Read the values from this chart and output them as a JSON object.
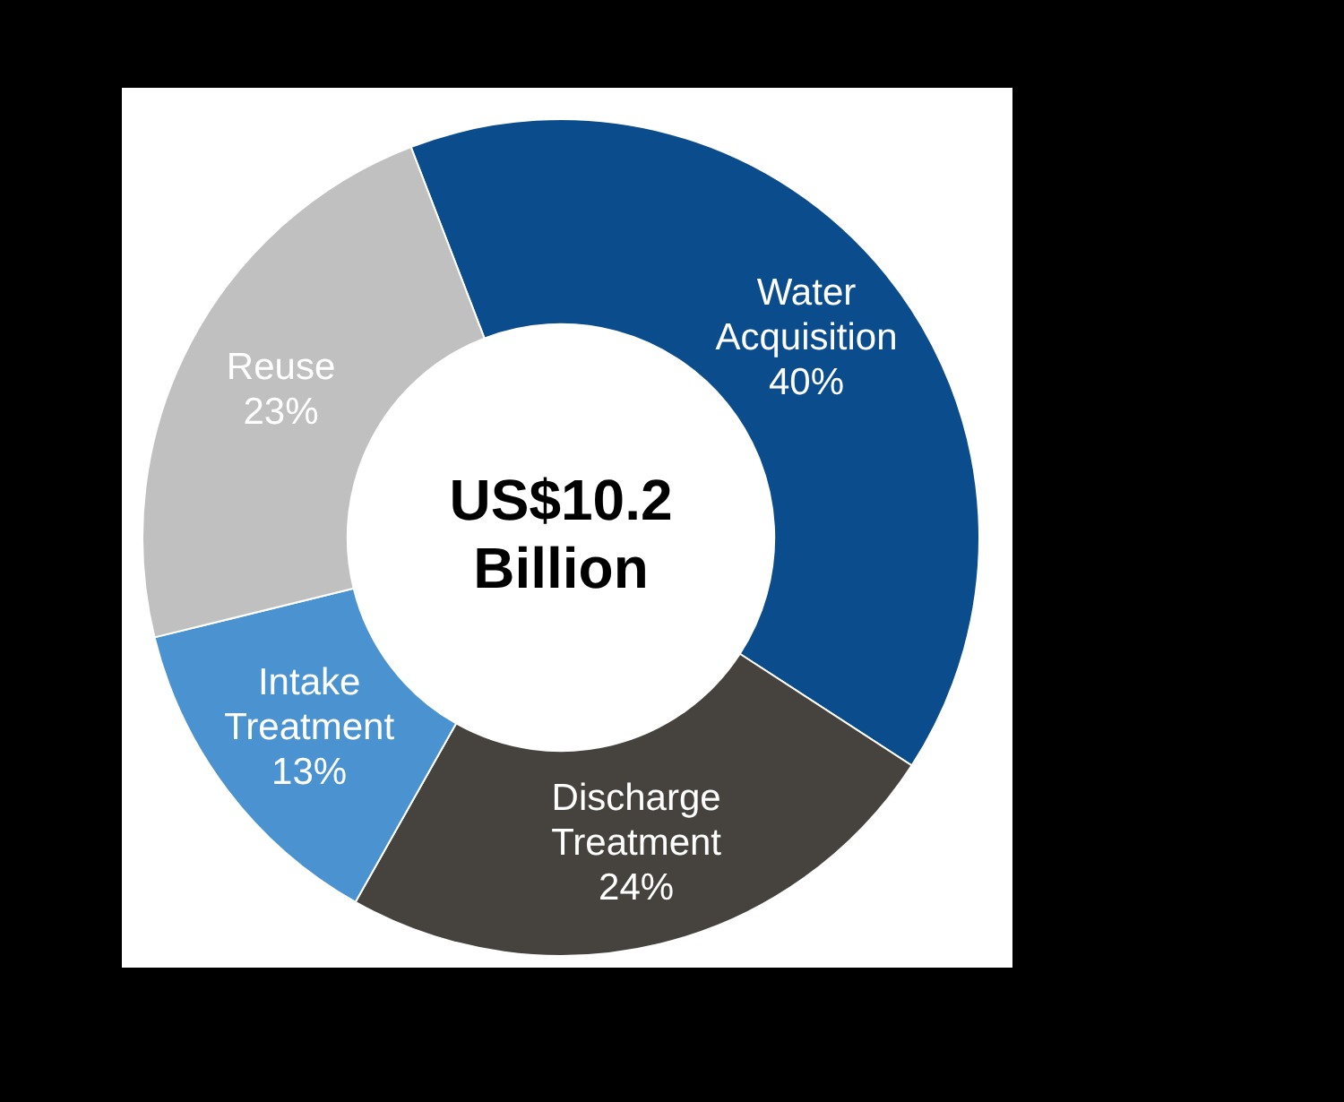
{
  "chart_data": {
    "type": "donut",
    "categories": [
      "Water Acquisition",
      "Discharge Treatment",
      "Intake Treatment",
      "Reuse"
    ],
    "values": [
      40,
      24,
      13,
      23
    ],
    "colors": [
      "#0b4c8c",
      "#46433e",
      "#4a93d0",
      "#c0c0c0"
    ],
    "value_labels": [
      "40%",
      "24%",
      "13%",
      "23%"
    ],
    "annotations": [
      "US$10.2 Billion"
    ]
  }
}
